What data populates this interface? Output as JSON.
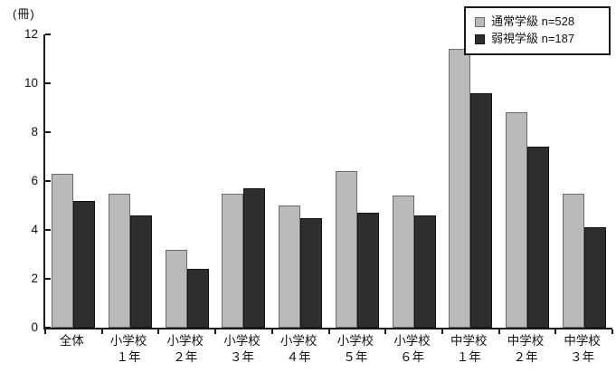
{
  "chart_data": {
    "type": "bar",
    "title": "",
    "unit_label": "(冊)",
    "xlabel": "",
    "ylabel": "(冊)",
    "ylim": [
      0,
      12
    ],
    "yticks": [
      0,
      2,
      4,
      6,
      8,
      10,
      12
    ],
    "grid": false,
    "legend_position": "top-right",
    "background": "#ffffff",
    "axis_color": "#1a1a1a",
    "categories": [
      [
        "全体"
      ],
      [
        "小学校",
        "１年"
      ],
      [
        "小学校",
        "２年"
      ],
      [
        "小学校",
        "３年"
      ],
      [
        "小学校",
        "４年"
      ],
      [
        "小学校",
        "５年"
      ],
      [
        "小学校",
        "６年"
      ],
      [
        "中学校",
        "１年"
      ],
      [
        "中学校",
        "２年"
      ],
      [
        "中学校",
        "３年"
      ]
    ],
    "series": [
      {
        "key": "regular-class",
        "label": "通常学級 n=528",
        "color": "#bababa",
        "border_color": "#6a6a6a",
        "values": [
          6.3,
          5.5,
          3.2,
          5.5,
          5.0,
          6.4,
          5.4,
          11.4,
          8.8,
          5.5
        ]
      },
      {
        "key": "low-vision-class",
        "label": "弱視学級 n=187",
        "color": "#2e2e2e",
        "border_color": "#141414",
        "values": [
          5.2,
          4.6,
          2.4,
          5.7,
          4.5,
          4.7,
          4.6,
          9.6,
          7.4,
          4.1
        ]
      }
    ]
  }
}
